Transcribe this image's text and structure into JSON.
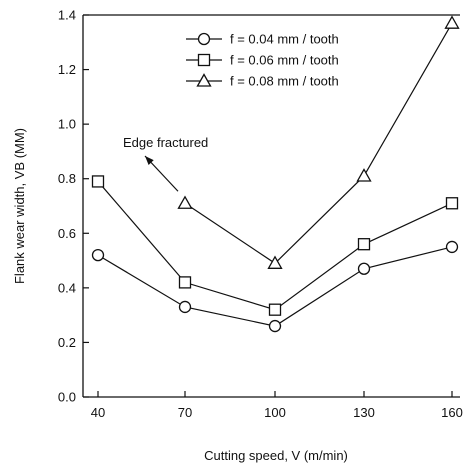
{
  "chart_data": {
    "type": "line",
    "xlabel": "Cutting speed, V (m/min)",
    "ylabel": "Flank wear width, VB (MM)",
    "categories": [
      40,
      70,
      100,
      130,
      160
    ],
    "ylim": [
      0.0,
      1.4
    ],
    "yticks": [
      "0.0",
      "0.2",
      "0.4",
      "0.6",
      "0.8",
      "1.0",
      "1.2",
      "1.4"
    ],
    "grid": false,
    "legend_position": "top-center",
    "series": [
      {
        "name": "f = 0.04 mm / tooth",
        "marker": "circle",
        "x": [
          40,
          70,
          100,
          130,
          160
        ],
        "values": [
          0.52,
          0.33,
          0.26,
          0.47,
          0.55
        ]
      },
      {
        "name": "f = 0.06 mm / tooth",
        "marker": "square",
        "x": [
          40,
          70,
          100,
          130,
          160
        ],
        "values": [
          0.79,
          0.42,
          0.32,
          0.56,
          0.71
        ]
      },
      {
        "name": "f = 0.08 mm / tooth",
        "marker": "triangle",
        "x": [
          70,
          100,
          130,
          160
        ],
        "values": [
          0.71,
          0.49,
          0.81,
          1.37
        ]
      }
    ],
    "annotation": {
      "text": "Edge fractured",
      "points_to": {
        "x": 70,
        "y": 0.71
      }
    }
  }
}
